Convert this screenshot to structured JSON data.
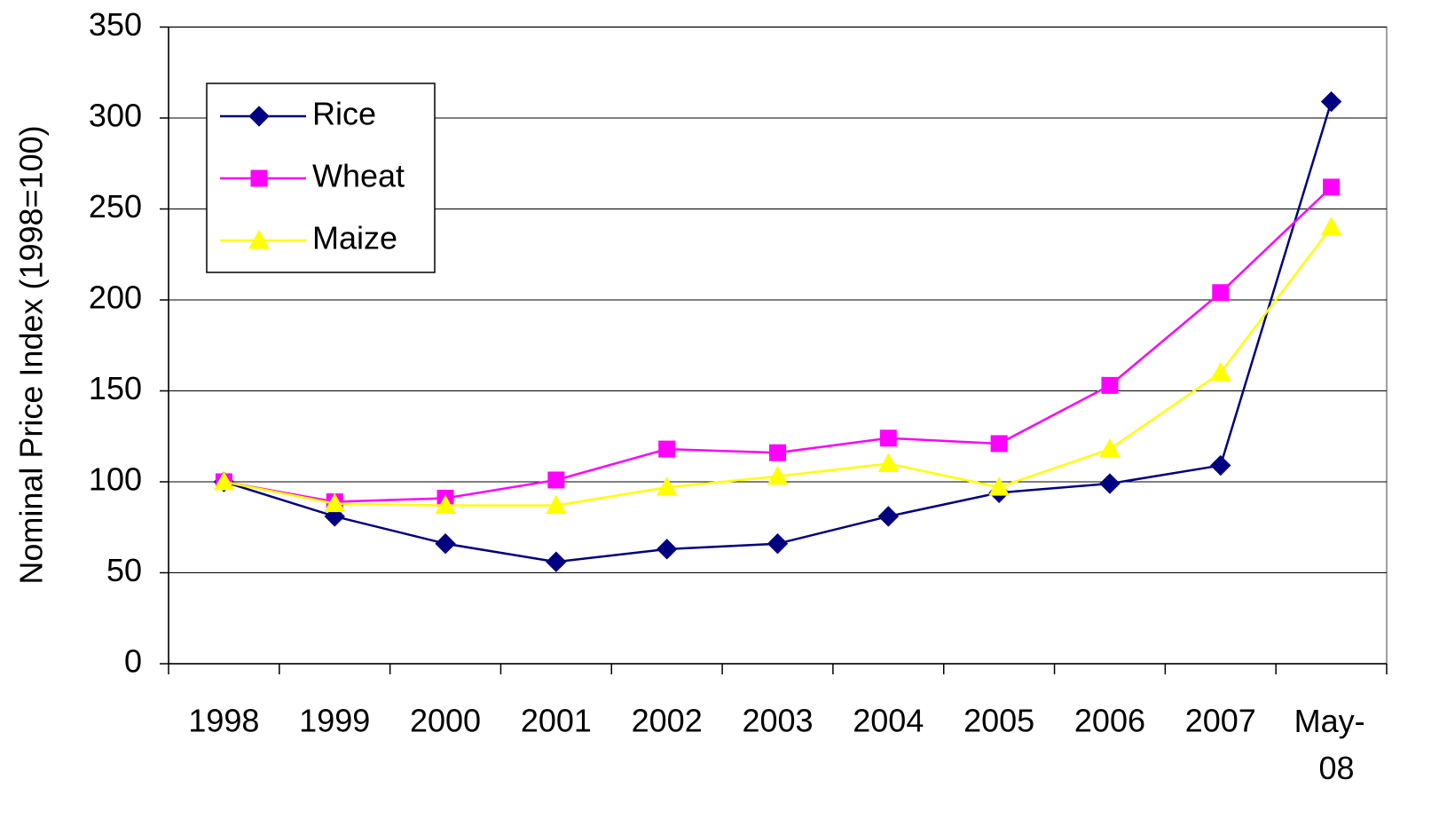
{
  "chart_data": {
    "type": "line",
    "y_label": "Nominal Price Index (1998=100)",
    "categories": [
      "1998",
      "1999",
      "2000",
      "2001",
      "2002",
      "2003",
      "2004",
      "2005",
      "2006",
      "2007",
      "May-08"
    ],
    "series": [
      {
        "name": "Rice",
        "color": "#000080",
        "marker": "diamond",
        "values": [
          100,
          81,
          66,
          56,
          63,
          66,
          81,
          94,
          99,
          109,
          309
        ]
      },
      {
        "name": "Wheat",
        "color": "#ff00ff",
        "marker": "square",
        "values": [
          100,
          89,
          91,
          101,
          118,
          116,
          124,
          121,
          153,
          204,
          262
        ]
      },
      {
        "name": "Maize",
        "color": "#ffff00",
        "marker": "triangle",
        "values": [
          100,
          88,
          87,
          87,
          97,
          103,
          110,
          97,
          118,
          160,
          240
        ]
      }
    ],
    "ylim": [
      0,
      350
    ],
    "yticks": [
      0,
      50,
      100,
      150,
      200,
      250,
      300,
      350
    ],
    "grid": true,
    "legend": "top-left"
  }
}
